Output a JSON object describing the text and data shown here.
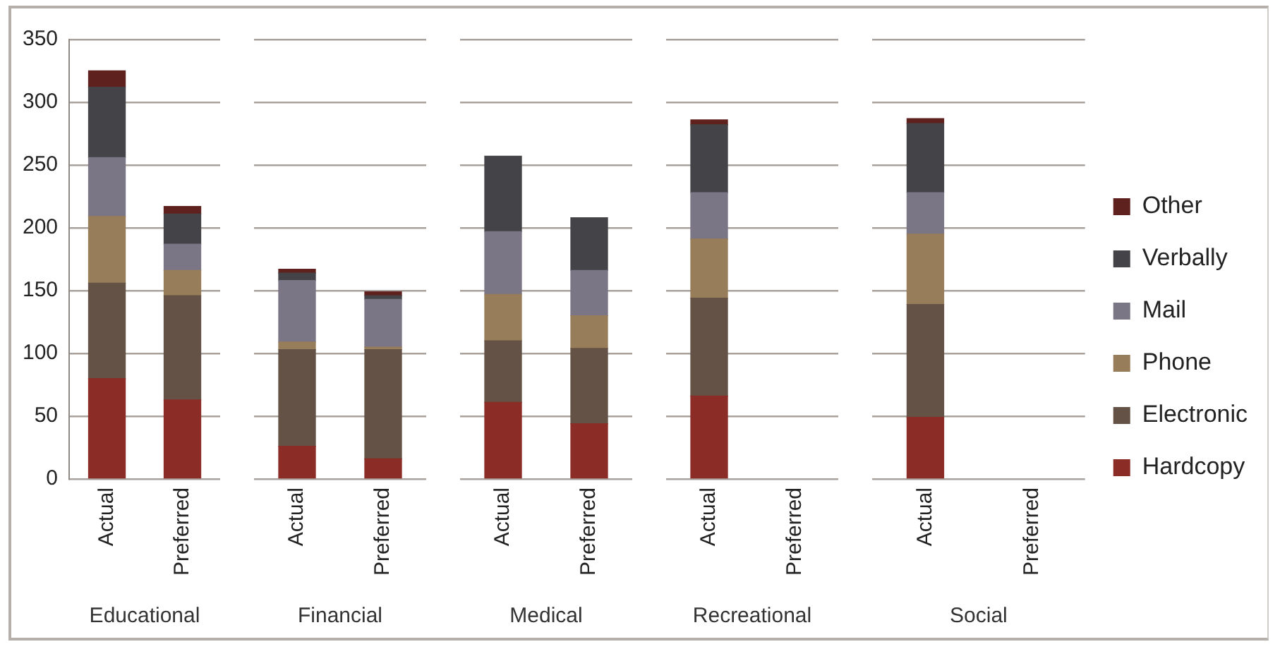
{
  "chart_data": [
    {
      "type": "bar",
      "stacked": true,
      "xlabel": "Educational",
      "categories": [
        "Actual",
        "Preferred"
      ],
      "ylim": [
        0,
        350
      ],
      "yticks": [
        0,
        50,
        100,
        150,
        200,
        250,
        300,
        350
      ],
      "grid": "y",
      "legend": false,
      "series": [
        {
          "color": "#8b2c26",
          "values": [
            80,
            63
          ]
        },
        {
          "color": "#635245",
          "values": [
            76,
            83
          ]
        },
        {
          "color": "#977d5a",
          "values": [
            53,
            20
          ]
        },
        {
          "color": "#7b7685",
          "values": [
            47,
            21
          ]
        },
        {
          "color": "#444448",
          "values": [
            56,
            24
          ]
        },
        {
          "color": "#5e211e",
          "values": [
            13,
            6
          ]
        }
      ]
    },
    {
      "type": "bar",
      "stacked": true,
      "xlabel": "Financial",
      "categories": [
        "Actual",
        "Preferred"
      ],
      "ylim": [
        0,
        350
      ],
      "yticks": [
        0,
        50,
        100,
        150,
        200,
        250,
        300,
        350
      ],
      "grid": "y",
      "legend": false,
      "tick_labels": "x",
      "series": [
        {
          "color": "#8b2c26",
          "values": [
            26,
            16
          ]
        },
        {
          "color": "#635245",
          "values": [
            77,
            87
          ]
        },
        {
          "color": "#977d5a",
          "values": [
            6,
            2
          ]
        },
        {
          "color": "#7b7685",
          "values": [
            49,
            38
          ]
        },
        {
          "color": "#444448",
          "values": [
            6,
            3
          ]
        },
        {
          "color": "#5e211e",
          "values": [
            3,
            3
          ]
        }
      ]
    },
    {
      "type": "bar",
      "stacked": true,
      "xlabel": "Medical",
      "categories": [
        "Actual",
        "Preferred"
      ],
      "ylim": [
        0,
        350
      ],
      "yticks": [
        0,
        50,
        100,
        150,
        200,
        250,
        300,
        350
      ],
      "grid": "y",
      "legend": false,
      "tick_labels": "x",
      "series": [
        {
          "color": "#8b2c26",
          "values": [
            61,
            44
          ]
        },
        {
          "color": "#635245",
          "values": [
            49,
            60
          ]
        },
        {
          "color": "#977d5a",
          "values": [
            37,
            26
          ]
        },
        {
          "color": "#7b7685",
          "values": [
            50,
            36
          ]
        },
        {
          "color": "#444448",
          "values": [
            60,
            42
          ]
        },
        {
          "color": "#5e211e",
          "values": [
            null,
            null
          ]
        }
      ]
    },
    {
      "type": "bar",
      "stacked": true,
      "xlabel": "Recreational",
      "categories": [
        "Actual",
        "Preferred"
      ],
      "ylim": [
        0,
        350
      ],
      "yticks": [
        0,
        50,
        100,
        150,
        200,
        250,
        300,
        350
      ],
      "grid": "y",
      "legend": false,
      "tick_labels": "x",
      "series": [
        {
          "color": "#8b2c26",
          "values": [
            66,
            null
          ]
        },
        {
          "color": "#635245",
          "values": [
            78,
            null
          ]
        },
        {
          "color": "#977d5a",
          "values": [
            47,
            null
          ]
        },
        {
          "color": "#7b7685",
          "values": [
            37,
            null
          ]
        },
        {
          "color": "#444448",
          "values": [
            54,
            null
          ]
        },
        {
          "color": "#5e211e",
          "values": [
            4,
            null
          ]
        }
      ]
    },
    {
      "type": "bar",
      "stacked": true,
      "xlabel": "Social",
      "categories": [
        "Actual",
        "Preferred"
      ],
      "ylim": [
        0,
        350
      ],
      "yticks": [
        0,
        50,
        100,
        150,
        200,
        250,
        300,
        350
      ],
      "grid": "y",
      "legend": "right",
      "tick_labels": "x",
      "series": [
        {
          "name": "Hardcopy",
          "color": "#8b2c26",
          "values": [
            49,
            null
          ]
        },
        {
          "name": "Electronic",
          "color": "#635245",
          "values": [
            90,
            null
          ]
        },
        {
          "name": "Phone",
          "color": "#977d5a",
          "values": [
            56,
            null
          ]
        },
        {
          "name": "Mail",
          "color": "#7b7685",
          "values": [
            33,
            null
          ]
        },
        {
          "name": "Verbally",
          "color": "#444448",
          "values": [
            55,
            null
          ]
        },
        {
          "name": "Other",
          "color": "#5e211e",
          "values": [
            4,
            null
          ]
        }
      ]
    }
  ]
}
